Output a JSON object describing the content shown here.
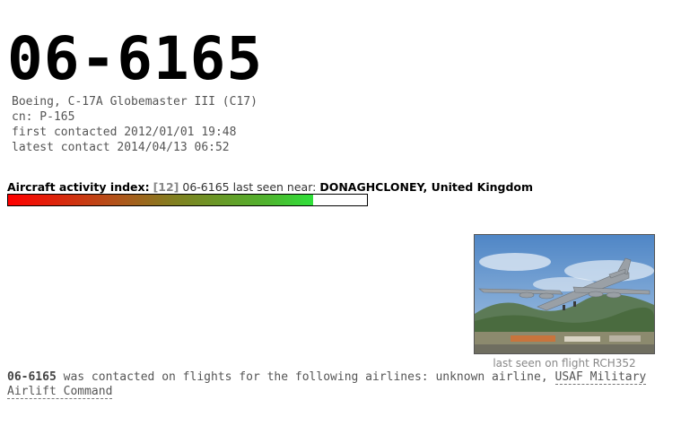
{
  "aircraft": {
    "registration": "06-6165",
    "type": "Boeing, C-17A Globemaster III (C17)",
    "cn": "cn: P-165",
    "first_contacted": "first contacted 2012/01/01 19:48",
    "latest_contact": "latest contact 2014/04/13 06:52"
  },
  "activity": {
    "label": "Aircraft activity index:",
    "index": "[12]",
    "registration": "06-6165",
    "seen_text": "last seen near:",
    "location": "DONAGHCLONEY, United Kingdom",
    "fill_fraction": 0.85,
    "colors": [
      "#ff0000",
      "#2fe03a"
    ]
  },
  "photo": {
    "caption": "last seen on flight RCH352"
  },
  "airlines": {
    "registration": "06-6165",
    "text": "was contacted on flights for the following airlines: unknown airline,",
    "link": "USAF Military Airlift Command"
  }
}
